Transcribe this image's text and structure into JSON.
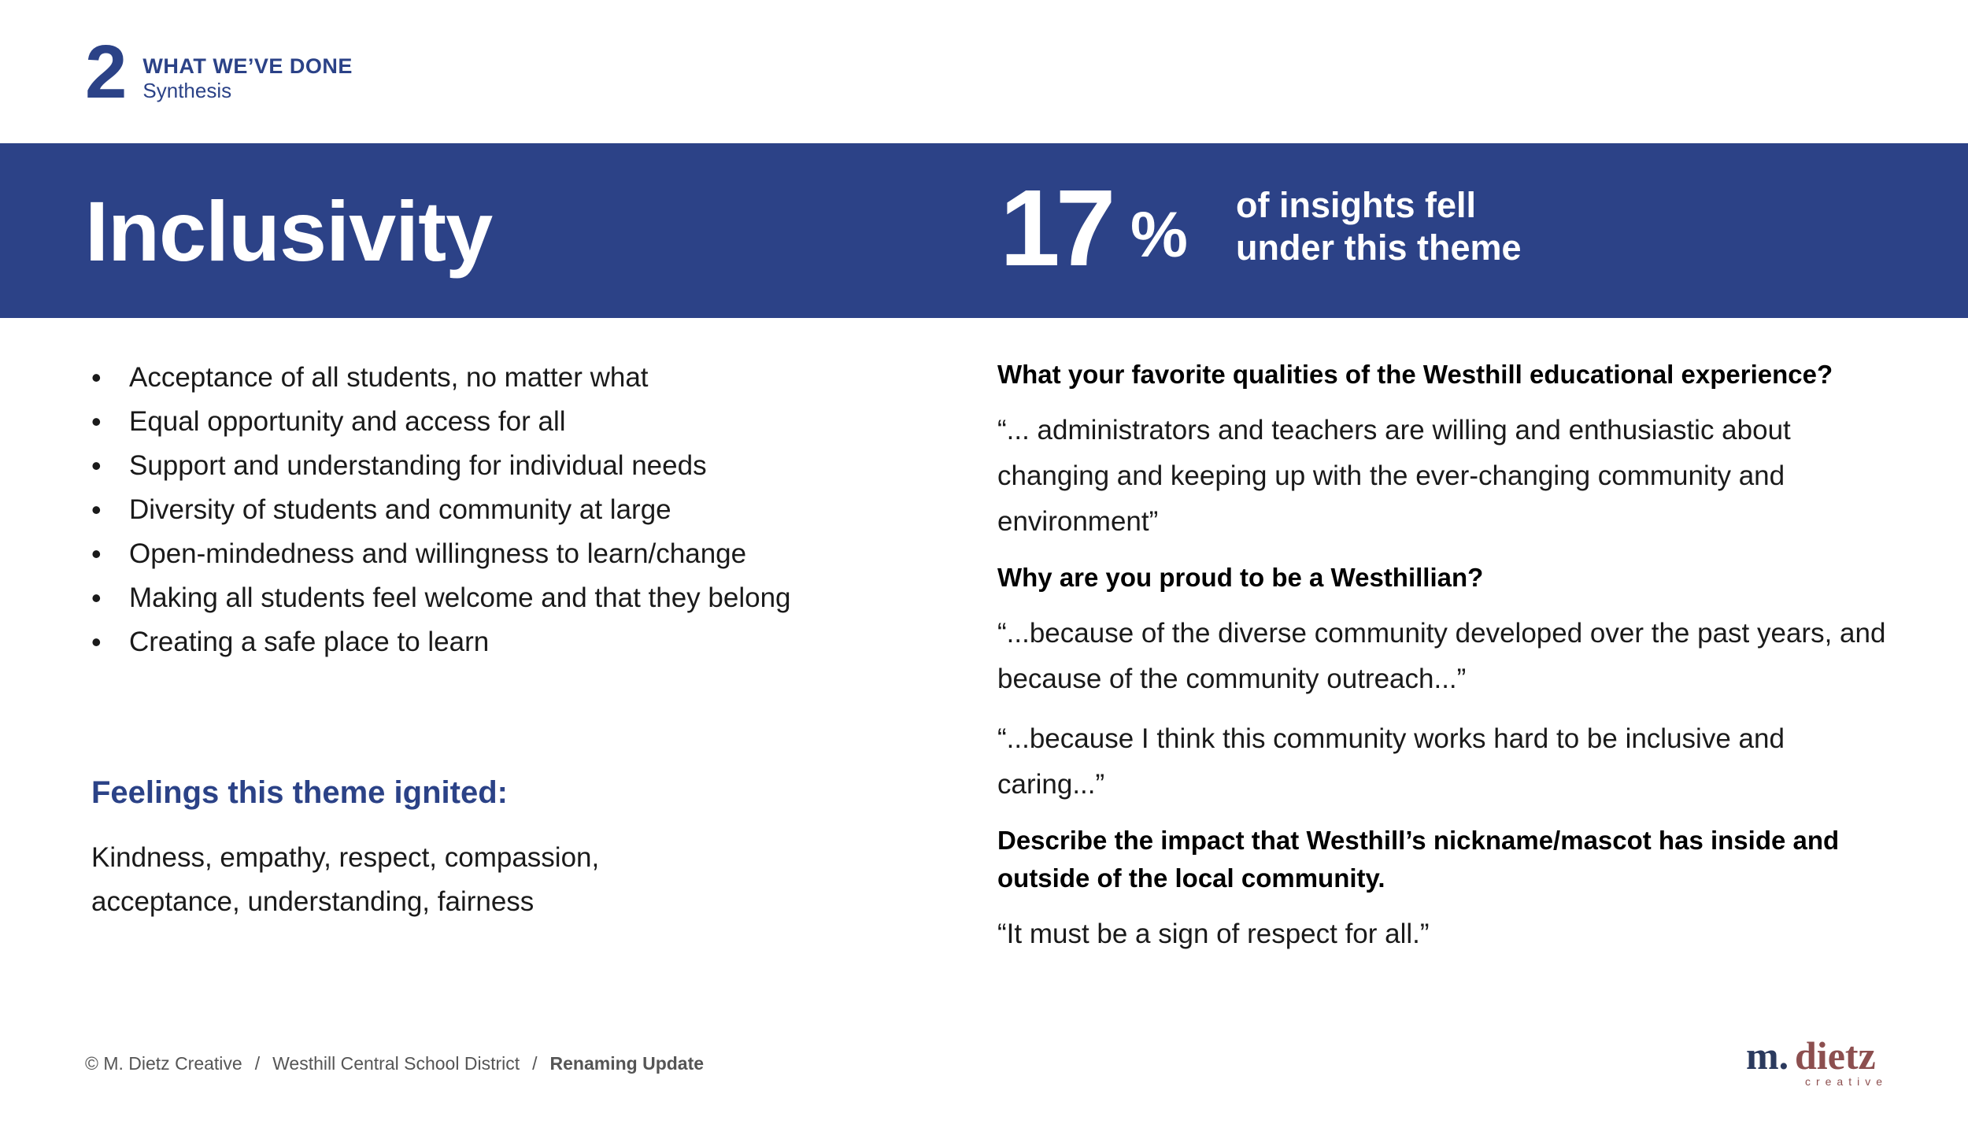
{
  "section": {
    "number": "2",
    "title": "WHAT WE’VE DONE",
    "subtitle": "Synthesis"
  },
  "banner": {
    "theme": "Inclusivity",
    "stat_number": "17",
    "stat_unit": "%",
    "stat_caption_line1": "of insights fell",
    "stat_caption_line2": "under this theme"
  },
  "bullets": [
    "Acceptance of all students, no matter what",
    "Equal opportunity and access for all",
    "Support and understanding for individual needs",
    "Diversity of students and community at large",
    "Open-mindedness and willingness to learn/change",
    "Making all students feel welcome and that they belong",
    "Creating a safe place to learn"
  ],
  "feelings": {
    "heading": "Feelings this theme ignited:",
    "text": "Kindness, empathy, respect, compassion, acceptance, understanding, fairness"
  },
  "qa": [
    {
      "question": "What your favorite qualities of the Westhill educational experience?"
    },
    {
      "answer": "“... administrators and teachers are willing and enthusiastic about changing and keeping up with the ever-changing community and environment”"
    },
    {
      "question": "Why are you proud to be a Westhillian?"
    },
    {
      "answer": "“...because of the diverse community developed over the past years, and because of the community outreach...”"
    },
    {
      "answer": "“...because I think this community works hard to be inclusive and caring...”"
    },
    {
      "question": "Describe the impact that Westhill’s nickname/mascot has inside and outside of the local community."
    },
    {
      "answer": "“It must be a sign of respect for all.”"
    }
  ],
  "footer": {
    "copyright": "© M. Dietz Creative",
    "separator": "/",
    "client": "Westhill Central School District",
    "project": "Renaming Update"
  },
  "logo": {
    "m": "m.",
    "dietz": "dietz",
    "creative": "creative"
  },
  "colors": {
    "brand_blue": "#2c4287",
    "logo_red": "#8c4f4f",
    "logo_navy": "#2b3a5e"
  }
}
